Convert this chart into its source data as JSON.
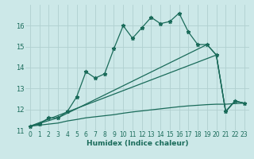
{
  "xlabel": "Humidex (Indice chaleur)",
  "ylabel": "",
  "background_color": "#cce8e8",
  "grid_color": "#b0d0d0",
  "line_color": "#1a6b5a",
  "xlim": [
    -0.5,
    23.5
  ],
  "ylim": [
    11.0,
    17.0
  ],
  "yticks": [
    11,
    12,
    13,
    14,
    15,
    16
  ],
  "xticks": [
    0,
    1,
    2,
    3,
    4,
    5,
    6,
    7,
    8,
    9,
    10,
    11,
    12,
    13,
    14,
    15,
    16,
    17,
    18,
    19,
    20,
    21,
    22,
    23
  ],
  "series1_x": [
    0,
    1,
    2,
    3,
    4,
    5,
    6,
    7,
    8,
    9,
    10,
    11,
    12,
    13,
    14,
    15,
    16,
    17,
    18,
    19,
    20,
    21,
    22,
    23
  ],
  "series1_y": [
    11.2,
    11.3,
    11.6,
    11.6,
    11.9,
    12.6,
    13.8,
    13.5,
    13.7,
    14.9,
    16.0,
    15.4,
    15.9,
    16.4,
    16.1,
    16.2,
    16.6,
    15.7,
    15.1,
    15.1,
    14.6,
    11.9,
    12.4,
    12.3
  ],
  "series2_x": [
    0,
    3,
    19,
    20,
    21,
    22,
    23
  ],
  "series2_y": [
    11.2,
    11.6,
    15.1,
    14.6,
    11.9,
    12.4,
    12.3
  ],
  "series3_x": [
    0,
    20,
    21,
    22,
    23
  ],
  "series3_y": [
    11.2,
    14.6,
    11.9,
    12.4,
    12.3
  ],
  "series4_x": [
    0,
    1,
    2,
    3,
    4,
    5,
    6,
    7,
    8,
    9,
    10,
    11,
    12,
    13,
    14,
    15,
    16,
    17,
    18,
    19,
    20,
    21,
    22,
    23
  ],
  "series4_y": [
    11.2,
    11.25,
    11.3,
    11.35,
    11.45,
    11.52,
    11.6,
    11.65,
    11.7,
    11.75,
    11.82,
    11.88,
    11.93,
    11.98,
    12.03,
    12.08,
    12.13,
    12.17,
    12.2,
    12.23,
    12.25,
    12.25,
    12.28,
    12.3
  ]
}
